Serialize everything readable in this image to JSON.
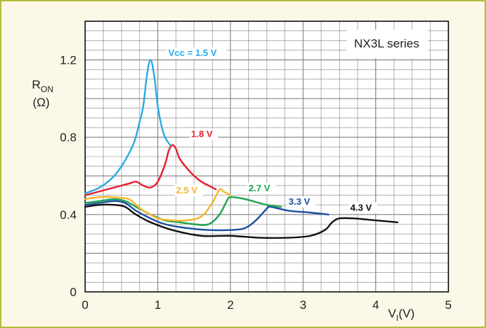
{
  "chart_data": {
    "type": "line",
    "title": "NX3L series",
    "ylabel": {
      "main": "R",
      "sub": "ON",
      "unit": "(Ω)"
    },
    "xlabel": {
      "main": "V",
      "sub": "I",
      "unit": "(V)"
    },
    "xlim": [
      0,
      5
    ],
    "ylim": [
      0,
      1.4
    ],
    "x_ticks": [
      0,
      1,
      2,
      3,
      4,
      5
    ],
    "y_ticks": [
      {
        "value": 0,
        "label": "0"
      },
      {
        "value": 0.4,
        "label": "0.4"
      },
      {
        "value": 0.8,
        "label": "0.8"
      },
      {
        "value": 1.2,
        "label": "1.2"
      }
    ],
    "grid": true,
    "series": [
      {
        "name": "Vcc = 1.5 V",
        "color": "#29abe2",
        "x": [
          0,
          0.2,
          0.4,
          0.55,
          0.68,
          0.75,
          0.8,
          0.85,
          0.9,
          0.95,
          1.0,
          1.05,
          1.1,
          1.17
        ],
        "y": [
          0.51,
          0.54,
          0.6,
          0.68,
          0.78,
          0.88,
          0.96,
          1.12,
          1.2,
          1.12,
          0.96,
          0.86,
          0.8,
          0.76
        ]
      },
      {
        "name": "1.8 V",
        "color": "#e5202e",
        "x": [
          0,
          0.2,
          0.4,
          0.6,
          0.7,
          0.8,
          0.9,
          1.0,
          1.1,
          1.15,
          1.2,
          1.25,
          1.3,
          1.4,
          1.5,
          1.6,
          1.7,
          1.8
        ],
        "y": [
          0.5,
          0.52,
          0.54,
          0.56,
          0.57,
          0.55,
          0.54,
          0.57,
          0.66,
          0.73,
          0.76,
          0.74,
          0.69,
          0.64,
          0.6,
          0.57,
          0.55,
          0.53
        ]
      },
      {
        "name": "2.5 V",
        "color": "#f7b52c",
        "x": [
          0,
          0.2,
          0.4,
          0.6,
          0.7,
          0.8,
          0.9,
          1.0,
          1.2,
          1.4,
          1.6,
          1.75,
          1.85,
          1.9,
          2.0
        ],
        "y": [
          0.48,
          0.49,
          0.49,
          0.48,
          0.45,
          0.42,
          0.4,
          0.38,
          0.37,
          0.37,
          0.39,
          0.46,
          0.53,
          0.52,
          0.5
        ]
      },
      {
        "name": "2.7 V",
        "color": "#1ea254",
        "x": [
          0,
          0.2,
          0.4,
          0.55,
          0.7,
          0.9,
          1.1,
          1.3,
          1.5,
          1.7,
          1.85,
          1.95,
          2.0,
          2.2,
          2.5,
          2.7
        ],
        "y": [
          0.46,
          0.47,
          0.48,
          0.47,
          0.44,
          0.4,
          0.37,
          0.36,
          0.35,
          0.35,
          0.4,
          0.47,
          0.49,
          0.48,
          0.45,
          0.44
        ]
      },
      {
        "name": "3.3 V",
        "color": "#1b4fa0",
        "x": [
          0,
          0.2,
          0.4,
          0.55,
          0.7,
          0.9,
          1.1,
          1.4,
          1.7,
          2.0,
          2.2,
          2.35,
          2.5,
          2.55,
          2.8,
          3.1,
          3.35
        ],
        "y": [
          0.45,
          0.46,
          0.47,
          0.46,
          0.42,
          0.38,
          0.35,
          0.33,
          0.32,
          0.32,
          0.33,
          0.37,
          0.43,
          0.44,
          0.42,
          0.41,
          0.4
        ]
      },
      {
        "name": "4.3 V",
        "color": "#111111",
        "x": [
          0,
          0.2,
          0.4,
          0.55,
          0.7,
          0.9,
          1.2,
          1.6,
          2.0,
          2.4,
          2.8,
          3.1,
          3.3,
          3.4,
          3.5,
          3.7,
          4.0,
          4.3
        ],
        "y": [
          0.44,
          0.45,
          0.45,
          0.44,
          0.4,
          0.36,
          0.32,
          0.29,
          0.29,
          0.28,
          0.28,
          0.29,
          0.32,
          0.36,
          0.38,
          0.38,
          0.37,
          0.36
        ]
      }
    ]
  }
}
